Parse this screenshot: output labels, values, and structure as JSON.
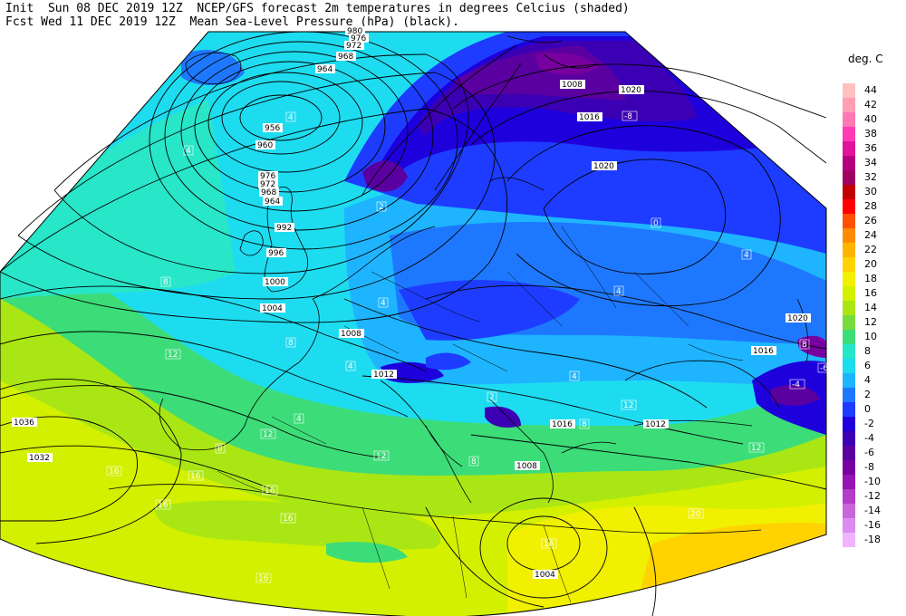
{
  "header": {
    "line1": "Init  Sun 08 DEC 2019 12Z  NCEP/GFS forecast 2m temperatures in degrees Celcius (shaded)",
    "line2": "Fcst Wed 11 DEC 2019 12Z  Mean Sea-Level Pressure (hPa) (black)."
  },
  "legend": {
    "title": "deg. C",
    "levels": [
      {
        "label": "44",
        "color": "#ffc0c0"
      },
      {
        "label": "42",
        "color": "#ff9eb4"
      },
      {
        "label": "40",
        "color": "#ff78b4"
      },
      {
        "label": "38",
        "color": "#ff3cb4"
      },
      {
        "label": "36",
        "color": "#e0149c"
      },
      {
        "label": "34",
        "color": "#b4007c"
      },
      {
        "label": "32",
        "color": "#a00064"
      },
      {
        "label": "30",
        "color": "#c00000"
      },
      {
        "label": "28",
        "color": "#ff0000"
      },
      {
        "label": "26",
        "color": "#ff5000"
      },
      {
        "label": "24",
        "color": "#ff8c00"
      },
      {
        "label": "22",
        "color": "#ffb400"
      },
      {
        "label": "20",
        "color": "#ffd200"
      },
      {
        "label": "18",
        "color": "#f0f000"
      },
      {
        "label": "16",
        "color": "#d2f000"
      },
      {
        "label": "14",
        "color": "#aae614"
      },
      {
        "label": "12",
        "color": "#78dc3c"
      },
      {
        "label": "10",
        "color": "#3cdc78"
      },
      {
        "label": "8",
        "color": "#28e6c8"
      },
      {
        "label": "6",
        "color": "#1edcf0"
      },
      {
        "label": "4",
        "color": "#1eb4ff"
      },
      {
        "label": "2",
        "color": "#1e78ff"
      },
      {
        "label": "0",
        "color": "#1e3cff"
      },
      {
        "label": "-2",
        "color": "#1e00dc"
      },
      {
        "label": "-4",
        "color": "#3c00b4"
      },
      {
        "label": "-6",
        "color": "#5a00a0"
      },
      {
        "label": "-8",
        "color": "#7800a0"
      },
      {
        "label": "-10",
        "color": "#9614b4"
      },
      {
        "label": "-12",
        "color": "#b43cc8"
      },
      {
        "label": "-14",
        "color": "#c864dc"
      },
      {
        "label": "-16",
        "color": "#dc8cf0"
      },
      {
        "label": "-18",
        "color": "#f0b4ff"
      }
    ]
  },
  "isobar_labels": [
    "980",
    "976",
    "972",
    "968",
    "964",
    "960",
    "956",
    "976",
    "972",
    "968",
    "964",
    "992",
    "996",
    "1000",
    "1004",
    "1008",
    "1012",
    "1016",
    "1012",
    "1008",
    "1016",
    "1020",
    "1020",
    "1016",
    "1020",
    "1036",
    "1032",
    "1008",
    "1004"
  ],
  "temperature_labels": [
    "4",
    "4",
    "8",
    "8",
    "12",
    "4",
    "4",
    "8",
    "12",
    "12",
    "16",
    "16",
    "16",
    "16",
    "16",
    "16",
    "16",
    "20",
    "-4",
    "-8",
    "0",
    "4",
    "4",
    "4",
    "4",
    "8",
    "8",
    "12",
    "12",
    "8",
    "-6",
    "2",
    "2"
  ]
}
